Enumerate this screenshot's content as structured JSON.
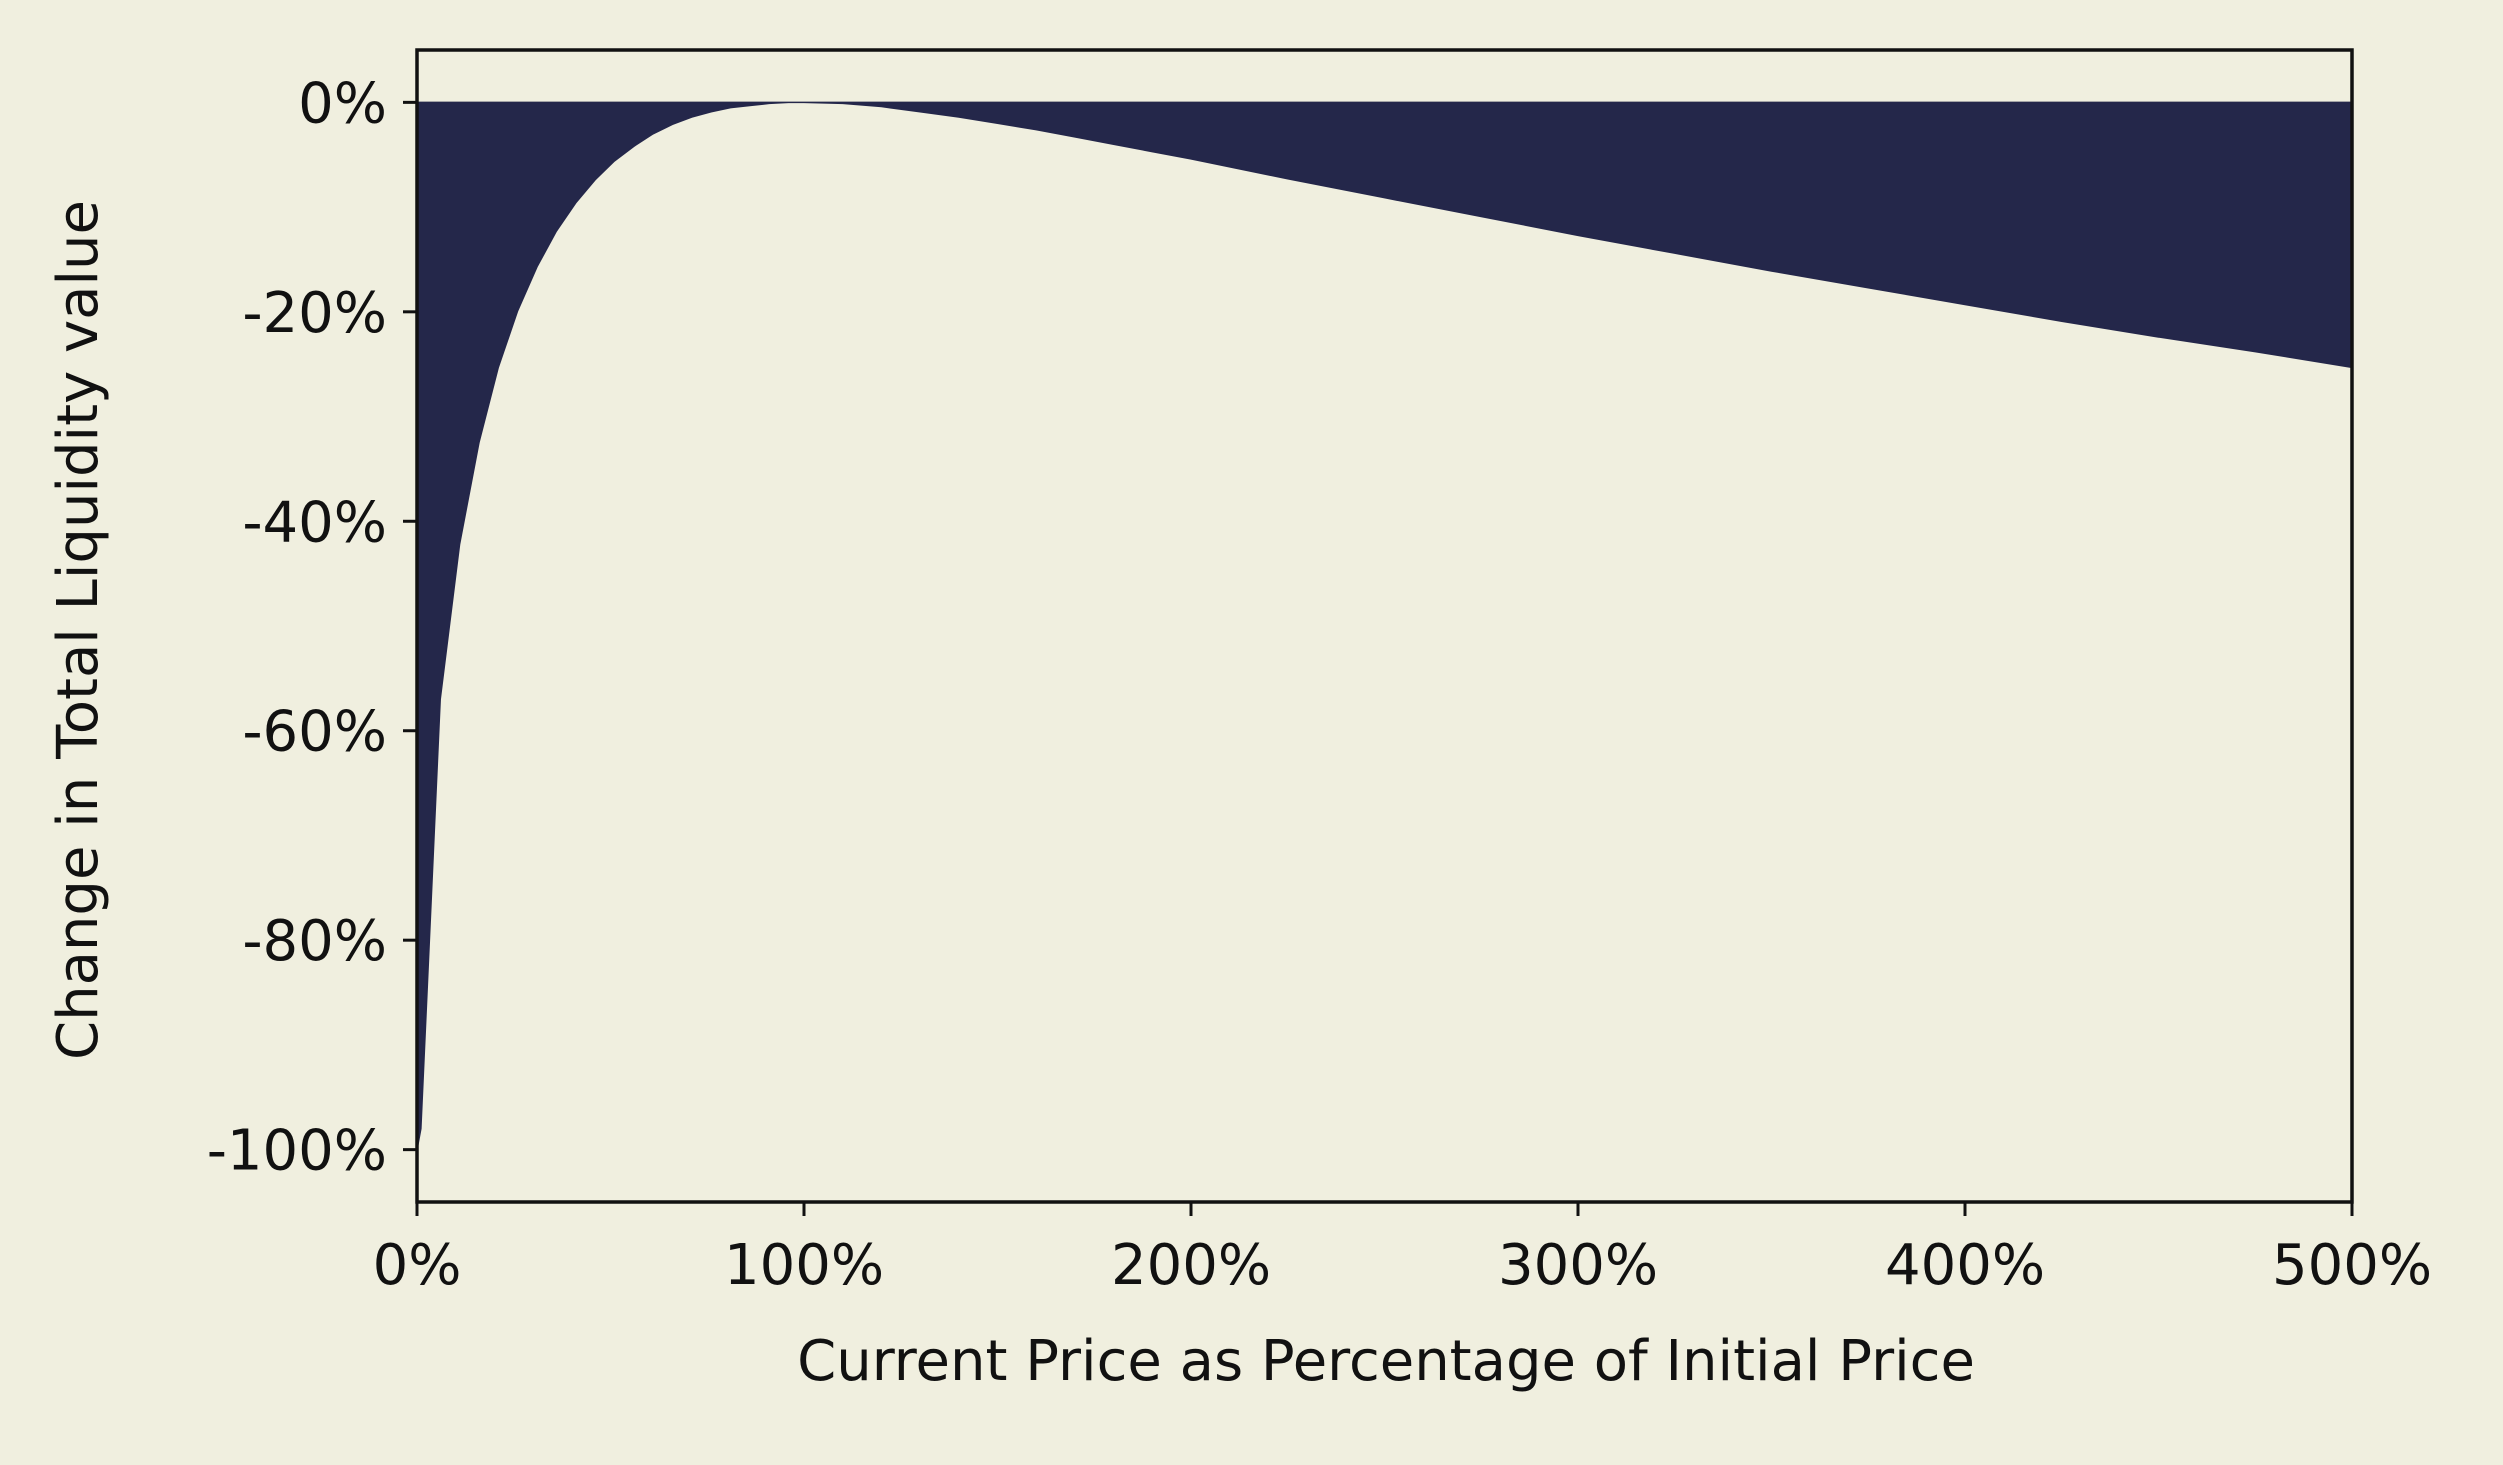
{
  "chart_data": {
    "type": "area",
    "title": "",
    "xlabel": "Current Price as Percentage of Initial Price",
    "ylabel": "Change in Total Liquidity value",
    "xlim": [
      0,
      500
    ],
    "ylim": [
      -105,
      5
    ],
    "x_unit": "%",
    "y_unit": "%",
    "xticks": [
      0,
      100,
      200,
      300,
      400,
      500
    ],
    "xtick_labels": [
      "0%",
      "100%",
      "200%",
      "300%",
      "400%",
      "500%"
    ],
    "yticks": [
      0,
      -20,
      -40,
      -60,
      -80,
      -100
    ],
    "ytick_labels": [
      "0%",
      "-20%",
      "-40%",
      "-60%",
      "-80%",
      "-100%"
    ],
    "grid": false,
    "legend": "none",
    "fill_baseline": 0,
    "colors": {
      "fill": "#24274a",
      "background": "#f0efdf",
      "axes": "#111111"
    },
    "series": [
      {
        "x": [
          0,
          1,
          6,
          11,
          16,
          21,
          26,
          31,
          36,
          41,
          46,
          51,
          56,
          61,
          66,
          71,
          76,
          81,
          86,
          91,
          96,
          100,
          110,
          120,
          130,
          140,
          150,
          160,
          170,
          180,
          190,
          200,
          225,
          250,
          275,
          300,
          325,
          350,
          375,
          400,
          425,
          450,
          475,
          500
        ],
        "values": [
          -100,
          -98.0,
          -57.0,
          -42.2,
          -32.5,
          -25.3,
          -19.9,
          -15.7,
          -12.3,
          -9.6,
          -7.4,
          -5.6,
          -4.2,
          -3.0,
          -2.1,
          -1.4,
          -0.9,
          -0.5,
          -0.3,
          -0.1,
          -0.0,
          0.0,
          -0.1,
          -0.4,
          -0.9,
          -1.4,
          -2.0,
          -2.6,
          -3.3,
          -4.0,
          -4.7,
          -5.4,
          -7.3,
          -9.1,
          -10.9,
          -12.7,
          -14.4,
          -16.1,
          -17.7,
          -19.3,
          -20.9,
          -22.4,
          -23.8,
          -25.3
        ]
      }
    ]
  }
}
